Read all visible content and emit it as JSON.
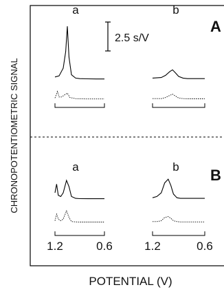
{
  "chart_data": [
    {
      "type": "line",
      "panel": "A",
      "ylabel": "CHRONOPOTENTIOMETRIC SIGNAL",
      "xlabel": "POTENTIAL (V)",
      "scale_bar_label": "2.5 s/V",
      "x_direction": "decreasing",
      "groups": [
        {
          "label": "a",
          "xlim": [
            1.2,
            0.6
          ],
          "series": [
            {
              "style": "solid",
              "x": [
                1.2,
                1.15,
                1.1,
                1.07,
                1.05,
                1.03,
                1.0,
                0.95,
                0.9,
                0.8,
                0.7,
                0.6
              ],
              "values": [
                0.2,
                0.3,
                1.0,
                2.5,
                4.8,
                2.0,
                0.4,
                0.1,
                0.05,
                0.03,
                0.02,
                0.02
              ]
            },
            {
              "style": "dotted",
              "x": [
                1.2,
                1.17,
                1.15,
                1.12,
                1.1,
                1.05,
                1.02,
                0.95,
                0.9,
                0.8,
                0.7,
                0.6
              ],
              "values": [
                0.1,
                0.7,
                0.2,
                0.2,
                0.3,
                0.55,
                0.15,
                0.05,
                0.03,
                0.02,
                0.02,
                0.02
              ]
            }
          ]
        },
        {
          "label": "b",
          "xlim": [
            1.2,
            0.6
          ],
          "series": [
            {
              "style": "solid",
              "x": [
                1.2,
                1.1,
                1.05,
                1.0,
                0.97,
                0.94,
                0.9,
                0.85,
                0.8,
                0.7,
                0.6
              ],
              "values": [
                0.1,
                0.15,
                0.35,
                0.7,
                0.85,
                0.6,
                0.25,
                0.1,
                0.05,
                0.05,
                0.05
              ]
            },
            {
              "style": "dotted",
              "x": [
                1.2,
                1.1,
                1.05,
                1.0,
                0.97,
                0.94,
                0.9,
                0.85,
                0.8,
                0.7,
                0.6
              ],
              "values": [
                0.05,
                0.05,
                0.15,
                0.35,
                0.45,
                0.3,
                0.1,
                0.05,
                0.03,
                0.03,
                0.03
              ]
            }
          ]
        }
      ]
    },
    {
      "type": "line",
      "panel": "B",
      "ylabel": "CHRONOPOTENTIOMETRIC SIGNAL",
      "xlabel": "POTENTIAL (V)",
      "x_direction": "decreasing",
      "groups": [
        {
          "label": "a",
          "xlim": [
            1.2,
            0.6
          ],
          "series": [
            {
              "style": "solid",
              "x": [
                1.2,
                1.18,
                1.16,
                1.13,
                1.1,
                1.06,
                1.03,
                1.0,
                0.95,
                0.9,
                0.8,
                0.7,
                0.6
              ],
              "values": [
                0.5,
                1.2,
                0.3,
                0.2,
                0.5,
                1.5,
                1.0,
                0.2,
                0.05,
                0.03,
                0.02,
                0.02,
                0.02
              ]
            },
            {
              "style": "dotted",
              "x": [
                1.2,
                1.18,
                1.16,
                1.13,
                1.1,
                1.06,
                1.03,
                1.0,
                0.95,
                0.9,
                0.8,
                0.7,
                0.6
              ],
              "values": [
                0.1,
                0.5,
                0.2,
                0.1,
                0.2,
                0.7,
                0.3,
                0.05,
                0.03,
                0.02,
                0.02,
                0.02,
                0.02
              ]
            }
          ]
        },
        {
          "label": "b",
          "xlim": [
            1.2,
            0.6
          ],
          "series": [
            {
              "style": "solid",
              "x": [
                1.2,
                1.15,
                1.1,
                1.06,
                1.02,
                0.99,
                0.96,
                0.92,
                0.88,
                0.8,
                0.7,
                0.6
              ],
              "values": [
                0.1,
                0.2,
                0.5,
                1.3,
                1.6,
                1.1,
                0.4,
                0.1,
                0.05,
                0.05,
                0.05,
                0.05
              ]
            },
            {
              "style": "dotted",
              "x": [
                1.2,
                1.15,
                1.1,
                1.06,
                1.02,
                0.99,
                0.96,
                0.92,
                0.88,
                0.8,
                0.7,
                0.6
              ],
              "values": [
                0.05,
                0.05,
                0.1,
                0.3,
                0.35,
                0.25,
                0.1,
                0.05,
                0.03,
                0.03,
                0.03,
                0.03
              ]
            }
          ]
        }
      ],
      "tick_labels": [
        "1.2",
        "0.6"
      ]
    }
  ]
}
